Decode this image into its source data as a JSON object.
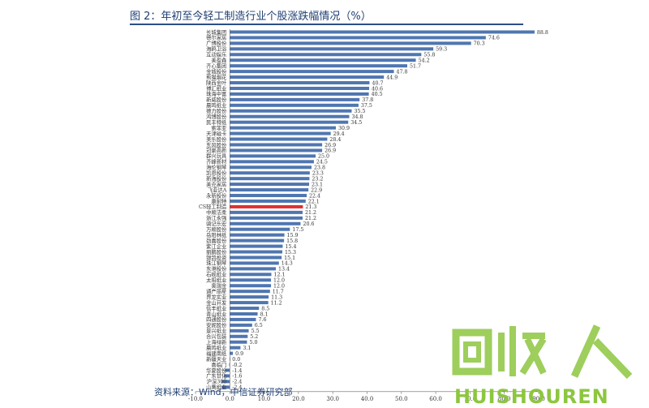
{
  "header": {
    "title": "图 2：年初至今轻工制造行业个股涨跌幅情况（%）"
  },
  "footer": {
    "source": "资料来源：Wind，中信证券研究部"
  },
  "watermark": {
    "logo_text": "回收人",
    "brand": "HUISHOUREN"
  },
  "colors": {
    "bar": "#4f76b0",
    "highlight": "#e03030",
    "text": "#1f3f73",
    "watermark": "#8dc63f"
  },
  "chart_data": {
    "type": "bar",
    "orientation": "horizontal",
    "highlight_category": "CS轻工制造",
    "xlim": [
      -10,
      90
    ],
    "xticks": [
      "-10.0",
      "0.0",
      "10.0",
      "20.0",
      "30.0",
      "40.0",
      "50.0",
      "60.0",
      "70.0",
      "80.0",
      "90.0"
    ],
    "categories": [
      "长城集团",
      "德尔家居",
      "广博股份",
      "海鸥卫浴",
      "互动娱乐",
      "美盈森",
      "齐心集团",
      "金城股份",
      "熊猫烟花",
      "陕西金叶",
      "博汇纸业",
      "珠海中富",
      "新威股份",
      "晨鸣纸业",
      "德力股份",
      "鸿博股份",
      "民丰特纸",
      "索菲亚",
      "天津磁卡",
      "美乐股份",
      "东风股份",
      "冠豪高新",
      "群兴玩具",
      "齐峰新材",
      "海伦钢琴",
      "凯恩股份",
      "新海股份",
      "美克家居",
      "飞亚达A",
      "永新股份",
      "康耐特",
      "CS轻工制造",
      "中顺洁柔",
      "浙江永强",
      "骑记乐宏",
      "万顺股份",
      "岳阳林纸",
      "劲嘉股份",
      "紫江企业",
      "丽鹏股份",
      "银鸽投资",
      "珠江钢琴",
      "东港股份",
      "石岘纸业",
      "太阳纸业",
      "奥瑞金",
      "通产丽星",
      "界龙实业",
      "金山开发",
      "信丰纸业",
      "青山纸业",
      "四通股份",
      "安妮股份",
      "景兴纸业",
      "合兴包装",
      "上海绿新",
      "晨鸣纸业",
      "福建南纸",
      "新疆天业",
      "喜临门",
      "华夏股份",
      "广东甘化",
      "沪深300",
      "山鹰纸业"
    ],
    "values": [
      88.8,
      74.6,
      70.3,
      59.3,
      55.8,
      54.2,
      51.7,
      47.8,
      44.9,
      40.7,
      40.6,
      40.5,
      37.8,
      37.5,
      35.5,
      34.8,
      34.5,
      30.9,
      29.4,
      28.4,
      26.9,
      26.9,
      25.0,
      24.5,
      23.8,
      23.3,
      23.2,
      23.1,
      22.9,
      22.4,
      22.1,
      21.3,
      21.2,
      21.2,
      20.6,
      17.5,
      15.9,
      15.8,
      15.4,
      15.3,
      15.1,
      14.3,
      13.4,
      12.1,
      12.0,
      12.0,
      11.7,
      11.3,
      11.2,
      8.5,
      8.1,
      7.6,
      6.5,
      5.5,
      5.2,
      5.0,
      3.1,
      0.9,
      0.0,
      -0.2,
      -1.4,
      -1.6,
      -2.4,
      -2.4
    ],
    "labels": [
      "88.8",
      "74.6",
      "70.3",
      "59.3",
      "55.8",
      "54.2",
      "51.7",
      "47.8",
      "44.9",
      "40.7",
      "40.6",
      "40.5",
      "37.8",
      "37.5",
      "35.5",
      "34.8",
      "34.5",
      "30.9",
      "29.4",
      "28.4",
      "26.9",
      "26.9",
      "25.0",
      "24.5",
      "23.8",
      "23.3",
      "23.2",
      "23.1",
      "22.9",
      "22.4",
      "22.1",
      "21.3",
      "21.2",
      "21.2",
      "20.6",
      "17.5",
      "15.9",
      "15.8",
      "15.4",
      "15.3",
      "15.1",
      "14.3",
      "13.4",
      "12.1",
      "12.0",
      "12.0",
      "11.7",
      "11.3",
      "11.2",
      "8.5",
      "8.1",
      "7.6",
      "6.5",
      "5.5",
      "5.2",
      "5.0",
      "3.1",
      "0.9",
      "0.0",
      "-0.2",
      "-1.4",
      "-1.6",
      "-2.4",
      "-2.4"
    ]
  }
}
